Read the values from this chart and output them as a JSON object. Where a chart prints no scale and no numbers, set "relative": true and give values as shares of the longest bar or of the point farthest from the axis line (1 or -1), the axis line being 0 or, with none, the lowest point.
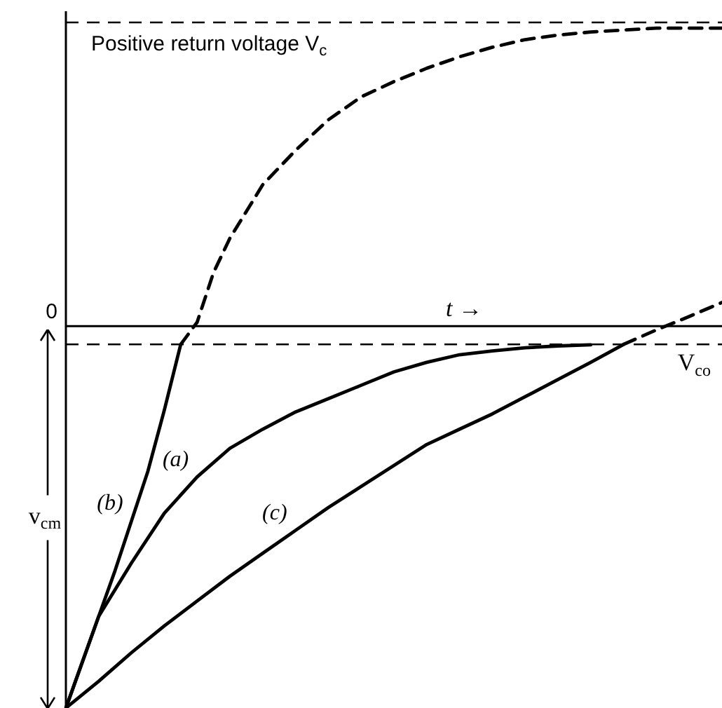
{
  "chart_data": {
    "type": "line",
    "relative": true,
    "legend": false,
    "tick_labels": false,
    "xlabel": "t →",
    "ylabel": "v$_{cm}$",
    "annotations": [
      "0"
    ],
    "categories": [
      null,
      null,
      null,
      null,
      null,
      null,
      null,
      null,
      null,
      null,
      null,
      null,
      null,
      null,
      null,
      null,
      null,
      null,
      null,
      null,
      null,
      null,
      null,
      null,
      null,
      null,
      null,
      null,
      null,
      null,
      null,
      null,
      null,
      null,
      null,
      null,
      null,
      null,
      null,
      null,
      null
    ],
    "ref_lines": [
      {
        "axis": "y",
        "value": 0.795,
        "label": "Positive return voltage V$_{c}$",
        "line_style": "dashed",
        "color": "#000000"
      },
      {
        "axis": "y",
        "value": -0.048,
        "label": "V$_{co}$",
        "line_style": "dashed",
        "color": "#000000"
      }
    ],
    "series": [
      {
        "name": "(a)",
        "color": "#000000",
        "line_style": "solid",
        "values": [
          -1,
          null,
          -0.76,
          null,
          -0.62,
          null,
          -0.49,
          null,
          -0.395,
          null,
          -0.32,
          null,
          -0.27,
          null,
          -0.225,
          null,
          -0.19,
          null,
          -0.155,
          null,
          -0.12,
          null,
          -0.095,
          null,
          -0.075,
          null,
          -0.065,
          null,
          -0.057,
          null,
          -0.052,
          null,
          -0.049,
          null,
          null,
          null,
          null,
          null,
          null,
          null,
          null
        ]
      },
      {
        "name": "(b)",
        "color": "#000000",
        "line_style": "solid",
        "values": [
          -1,
          -0.88,
          -0.76,
          -0.64,
          -0.51,
          -0.38,
          -0.22,
          -0.048,
          null,
          null,
          null,
          null,
          null,
          null,
          null,
          null,
          null,
          null,
          null,
          null,
          null,
          null,
          null,
          null,
          null,
          null,
          null,
          null,
          null,
          null,
          null,
          null,
          null,
          null,
          null,
          null,
          null,
          null,
          null,
          null,
          null
        ]
      },
      {
        "color": "#000000",
        "line_style": "dashed",
        "values": [
          null,
          null,
          null,
          null,
          null,
          null,
          null,
          -0.048,
          0.01,
          0.14,
          0.23,
          0.3,
          0.37,
          null,
          0.46,
          null,
          0.54,
          null,
          0.6,
          null,
          0.64,
          null,
          0.675,
          null,
          0.705,
          null,
          0.73,
          null,
          0.75,
          null,
          0.762,
          null,
          0.77,
          null,
          0.775,
          null,
          0.78,
          null,
          0.78,
          null,
          0.78
        ]
      },
      {
        "name": "(c)",
        "color": "#000000",
        "line_style": "solid",
        "values": [
          -1,
          null,
          -0.93,
          null,
          -0.855,
          null,
          -0.785,
          null,
          -0.72,
          null,
          -0.655,
          null,
          -0.595,
          null,
          -0.535,
          null,
          -0.475,
          null,
          -0.42,
          null,
          -0.365,
          null,
          -0.31,
          null,
          -0.27,
          null,
          -0.23,
          null,
          -0.185,
          null,
          -0.14,
          null,
          -0.095,
          null,
          -0.048,
          null,
          null,
          null,
          null,
          null,
          null
        ]
      },
      {
        "color": "#000000",
        "line_style": "dashed",
        "values": [
          null,
          null,
          null,
          null,
          null,
          null,
          null,
          null,
          null,
          null,
          null,
          null,
          null,
          null,
          null,
          null,
          null,
          null,
          null,
          null,
          null,
          null,
          null,
          null,
          null,
          null,
          null,
          null,
          null,
          null,
          null,
          null,
          null,
          null,
          -0.048,
          null,
          -0.01,
          null,
          0.025,
          null,
          0.062
        ]
      }
    ]
  }
}
